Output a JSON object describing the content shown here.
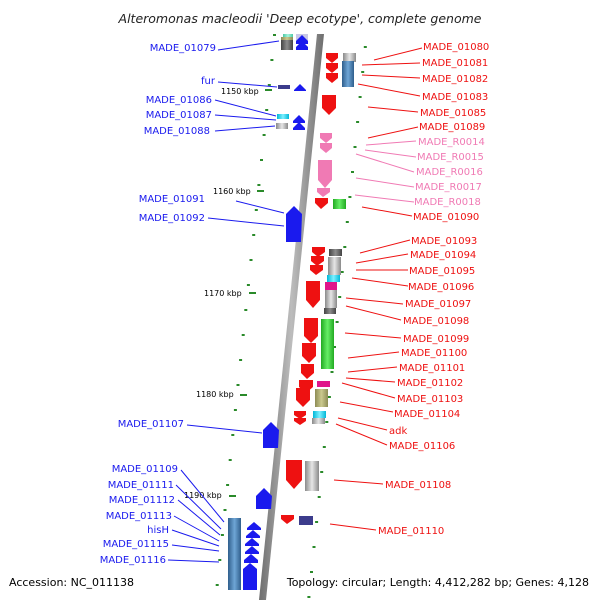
{
  "title": "Alteromonas macleodii 'Deep ecotype', complete genome",
  "footer": {
    "accession": "Accession: NC_011138",
    "topology": "Topology: circular; Length: 4,412,282 bp; Genes: 4,128"
  },
  "colors": {
    "forward": "#1a1aee",
    "reverse": "#ee1111",
    "rna": "#f07ab4",
    "backbone": "#8c8c8c",
    "tick": "#2a8a2a"
  },
  "ruler": [
    "1150 kbp",
    "1160 kbp",
    "1170 kbp",
    "1180 kbp",
    "1190 kbp"
  ],
  "left_labels": [
    "MADE_01079",
    "fur",
    "MADE_01086",
    "MADE_01087",
    "MADE_01088",
    "MADE_01091",
    "MADE_01092",
    "MADE_01107",
    "MADE_01109",
    "MADE_01111",
    "MADE_01112",
    "MADE_01113",
    "hisH",
    "MADE_01115",
    "MADE_01116"
  ],
  "right_labels": [
    "MADE_01080",
    "MADE_01081",
    "MADE_01082",
    "MADE_01083",
    "MADE_01085",
    "MADE_01089",
    "MADE_R0014",
    "MADE_R0015",
    "MADE_R0016",
    "MADE_R0017",
    "MADE_R0018",
    "MADE_01090",
    "MADE_01093",
    "MADE_01094",
    "MADE_01095",
    "MADE_01096",
    "MADE_01097",
    "MADE_01098",
    "MADE_01099",
    "MADE_01100",
    "MADE_01101",
    "MADE_01102",
    "MADE_01103",
    "MADE_01104",
    "adk",
    "MADE_01106",
    "MADE_01108",
    "MADE_01110"
  ]
}
